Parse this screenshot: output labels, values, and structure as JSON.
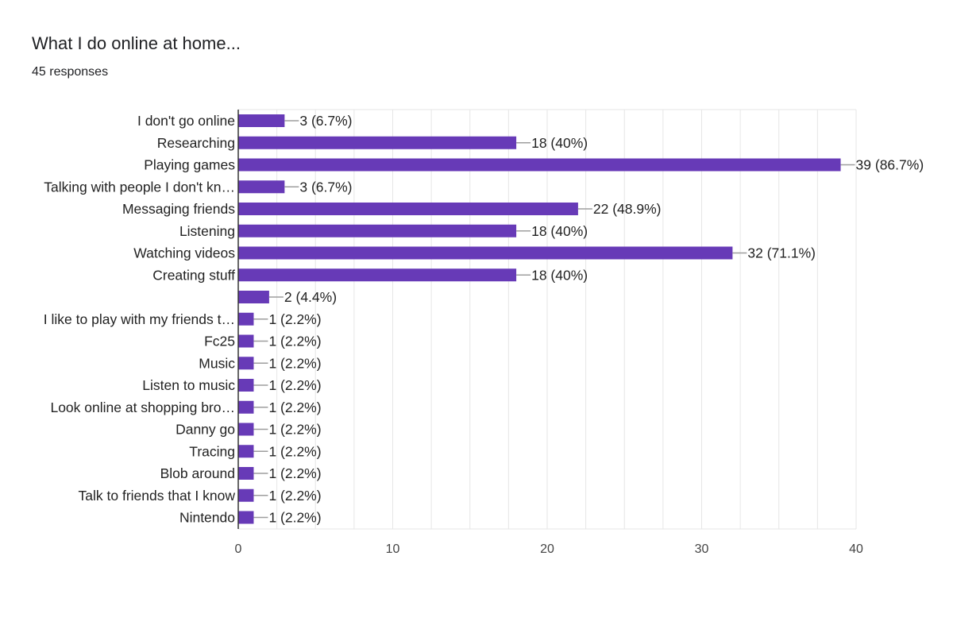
{
  "header": {
    "title": "What I do online at home...",
    "responses": "45 responses"
  },
  "colors": {
    "bar": "#673ab7",
    "grid": "#e6e6e6",
    "axis": "#333333",
    "connector": "#9e9e9e"
  },
  "chart_data": {
    "type": "bar",
    "orientation": "horizontal",
    "title": "What I do online at home...",
    "subtitle": "45 responses",
    "categories": [
      "I don't go online",
      "Researching",
      "Playing games",
      "Talking with people I don't kn…",
      "Messaging friends",
      "Listening",
      "Watching videos",
      "Creating stuff",
      "",
      "I like to play with my friends t…",
      "Fc25",
      "Music",
      "Listen to music",
      "Look online at shopping bro…",
      "Danny go",
      "Tracing",
      "Blob around",
      "Talk to friends that I know",
      "Nintendo"
    ],
    "values": [
      3,
      18,
      39,
      3,
      22,
      18,
      32,
      18,
      2,
      1,
      1,
      1,
      1,
      1,
      1,
      1,
      1,
      1,
      1
    ],
    "value_labels": [
      "3 (6.7%)",
      "18 (40%)",
      "39 (86.7%)",
      "3 (6.7%)",
      "22 (48.9%)",
      "18 (40%)",
      "32 (71.1%)",
      "18 (40%)",
      "2 (4.4%)",
      "1 (2.2%)",
      "1 (2.2%)",
      "1 (2.2%)",
      "1 (2.2%)",
      "1 (2.2%)",
      "1 (2.2%)",
      "1 (2.2%)",
      "1 (2.2%)",
      "1 (2.2%)",
      "1 (2.2%)"
    ],
    "xlim": [
      0,
      40
    ],
    "xticks": [
      0,
      10,
      20,
      30,
      40
    ],
    "xlabel": "",
    "ylabel": "",
    "grid": true,
    "legend": "none"
  }
}
